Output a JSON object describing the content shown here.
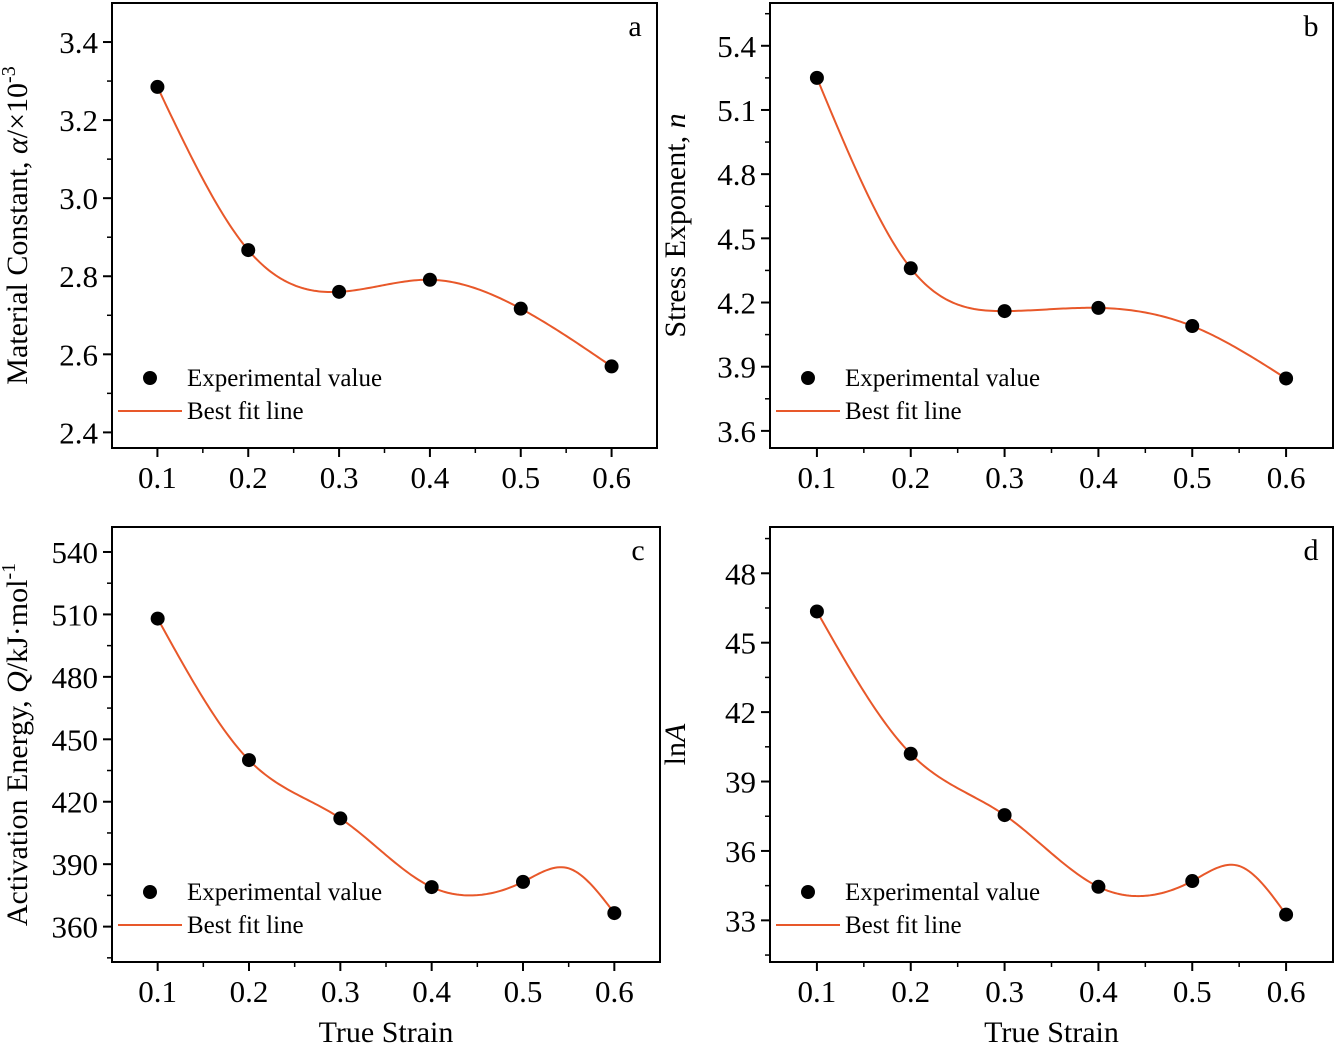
{
  "styles": {
    "fit_line_color": "#e8582a",
    "marker_color": "#000000",
    "axis_color": "#000000"
  },
  "chart_data": [
    {
      "panel": "a",
      "type": "scatter",
      "legend": {
        "experimental": "Experimental value",
        "fit": "Best fit line",
        "placement": "bottom-left"
      },
      "xlabel": "",
      "ylabel": {
        "main": "Material Constant, ",
        "italic": "α",
        "tail": "/×10",
        "sup": "-3"
      },
      "xlim": [
        0.05,
        0.65
      ],
      "ylim": [
        2.36,
        3.5
      ],
      "xticks": [
        0.1,
        0.2,
        0.3,
        0.4,
        0.5,
        0.6
      ],
      "yticks": [
        2.4,
        2.6,
        2.8,
        3.0,
        3.2,
        3.4
      ],
      "ytick_labels": [
        "2.4",
        "2.6",
        "2.8",
        "3.0",
        "3.2",
        "3.4"
      ],
      "xtick_labels": [
        "0.1",
        "0.2",
        "0.3",
        "0.4",
        "0.5",
        "0.6"
      ],
      "grid": false,
      "series": [
        {
          "kind": "points",
          "x": [
            0.1,
            0.2,
            0.3,
            0.4,
            0.5,
            0.6
          ],
          "y": [
            3.285,
            2.867,
            2.76,
            2.791,
            2.717,
            2.569
          ]
        },
        {
          "kind": "fit",
          "x": [
            0.1,
            0.2,
            0.3,
            0.4,
            0.5,
            0.6
          ],
          "y": [
            3.285,
            2.867,
            2.76,
            2.791,
            2.717,
            2.569
          ]
        }
      ]
    },
    {
      "panel": "b",
      "type": "scatter",
      "legend": {
        "experimental": "Experimental value",
        "fit": "Best fit line",
        "placement": "bottom-left"
      },
      "xlabel": "",
      "ylabel": {
        "main": "Stress Exponent, ",
        "italic": "n",
        "tail": "",
        "sup": ""
      },
      "xlim": [
        0.05,
        0.65
      ],
      "ylim": [
        3.52,
        5.6
      ],
      "xticks": [
        0.1,
        0.2,
        0.3,
        0.4,
        0.5,
        0.6
      ],
      "yticks": [
        3.6,
        3.9,
        4.2,
        4.5,
        4.8,
        5.1,
        5.4
      ],
      "ytick_labels": [
        "3.6",
        "3.9",
        "4.2",
        "4.5",
        "4.8",
        "5.1",
        "5.4"
      ],
      "xtick_labels": [
        "0.1",
        "0.2",
        "0.3",
        "0.4",
        "0.5",
        "0.6"
      ],
      "grid": false,
      "series": [
        {
          "kind": "points",
          "x": [
            0.1,
            0.2,
            0.3,
            0.4,
            0.5,
            0.6
          ],
          "y": [
            5.25,
            4.36,
            4.16,
            4.175,
            4.09,
            3.845
          ]
        },
        {
          "kind": "fit",
          "x": [
            0.1,
            0.2,
            0.3,
            0.4,
            0.5,
            0.6
          ],
          "y": [
            5.25,
            4.36,
            4.16,
            4.175,
            4.09,
            3.845
          ]
        }
      ]
    },
    {
      "panel": "c",
      "type": "scatter",
      "legend": {
        "experimental": "Experimental value",
        "fit": "Best fit line",
        "placement": "bottom-left"
      },
      "xlabel": "True Strain",
      "ylabel": {
        "main": "Activation Energy, ",
        "italic": "Q",
        "tail": "/kJ·mol",
        "sup": "-1"
      },
      "xlim": [
        0.05,
        0.65
      ],
      "ylim": [
        343,
        552
      ],
      "xticks": [
        0.1,
        0.2,
        0.3,
        0.4,
        0.5,
        0.6
      ],
      "yticks": [
        360,
        390,
        420,
        450,
        480,
        510,
        540
      ],
      "ytick_labels": [
        "360",
        "390",
        "420",
        "450",
        "480",
        "510",
        "540"
      ],
      "xtick_labels": [
        "0.1",
        "0.2",
        "0.3",
        "0.4",
        "0.5",
        "0.6"
      ],
      "grid": false,
      "series": [
        {
          "kind": "points",
          "x": [
            0.1,
            0.2,
            0.3,
            0.4,
            0.5,
            0.6
          ],
          "y": [
            508,
            440,
            412,
            379,
            381.5,
            366.5
          ]
        },
        {
          "kind": "fit",
          "x": [
            0.1,
            0.2,
            0.3,
            0.4,
            0.44,
            0.5,
            0.55,
            0.6
          ],
          "y": [
            508,
            440,
            412,
            379,
            375,
            381.5,
            388,
            366.5
          ]
        }
      ]
    },
    {
      "panel": "d",
      "type": "scatter",
      "legend": {
        "experimental": "Experimental value",
        "fit": "Best fit line",
        "placement": "bottom-left"
      },
      "xlabel": "True Strain",
      "ylabel": {
        "main": "ln",
        "italic": "A",
        "tail": "",
        "sup": ""
      },
      "xlim": [
        0.05,
        0.65
      ],
      "ylim": [
        31.2,
        50.0
      ],
      "xticks": [
        0.1,
        0.2,
        0.3,
        0.4,
        0.5,
        0.6
      ],
      "yticks": [
        33,
        36,
        39,
        42,
        45,
        48
      ],
      "ytick_labels": [
        "33",
        "36",
        "39",
        "42",
        "45",
        "48"
      ],
      "xtick_labels": [
        "0.1",
        "0.2",
        "0.3",
        "0.4",
        "0.5",
        "0.6"
      ],
      "grid": false,
      "series": [
        {
          "kind": "points",
          "x": [
            0.1,
            0.2,
            0.3,
            0.4,
            0.5,
            0.6
          ],
          "y": [
            46.35,
            40.2,
            37.55,
            34.45,
            34.7,
            33.25
          ]
        },
        {
          "kind": "fit",
          "x": [
            0.1,
            0.2,
            0.3,
            0.4,
            0.44,
            0.5,
            0.55,
            0.6
          ],
          "y": [
            46.35,
            40.2,
            37.55,
            34.45,
            34.05,
            34.7,
            35.35,
            33.25
          ]
        }
      ]
    }
  ]
}
